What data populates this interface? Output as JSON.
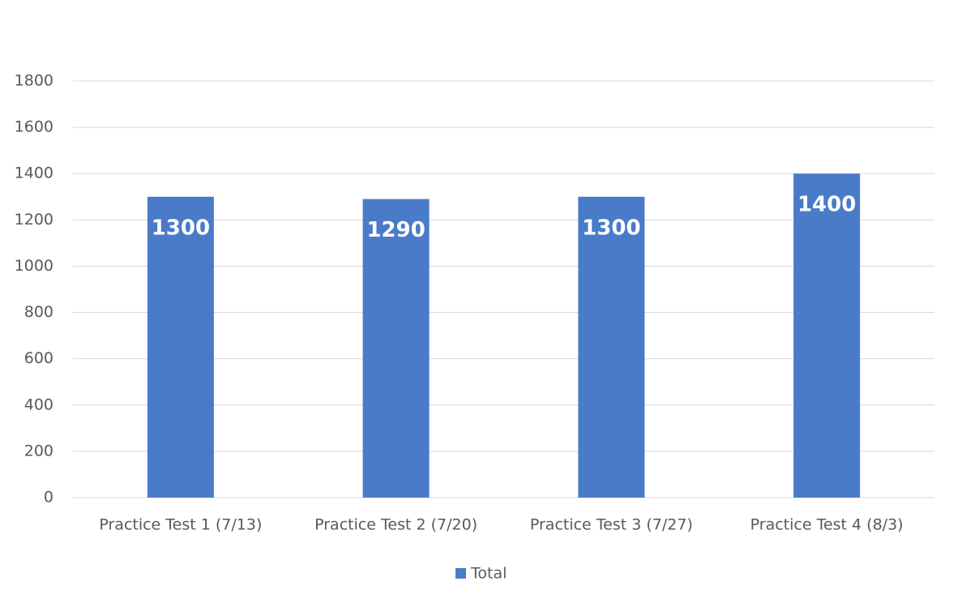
{
  "chart_data": {
    "type": "bar",
    "categories": [
      "Practice Test 1 (7/13)",
      "Practice Test 2 (7/20)",
      "Practice Test 3 (7/27)",
      "Practice Test 4 (8/3)"
    ],
    "series": [
      {
        "name": "Total",
        "color": "#4a7bc8",
        "values": [
          1300,
          1290,
          1300,
          1400
        ]
      }
    ],
    "ylim": [
      0,
      1800
    ],
    "yticks": [
      0,
      200,
      400,
      600,
      800,
      1000,
      1200,
      1400,
      1600,
      1800
    ],
    "grid": true,
    "legend": "bottom",
    "data_labels": true
  }
}
